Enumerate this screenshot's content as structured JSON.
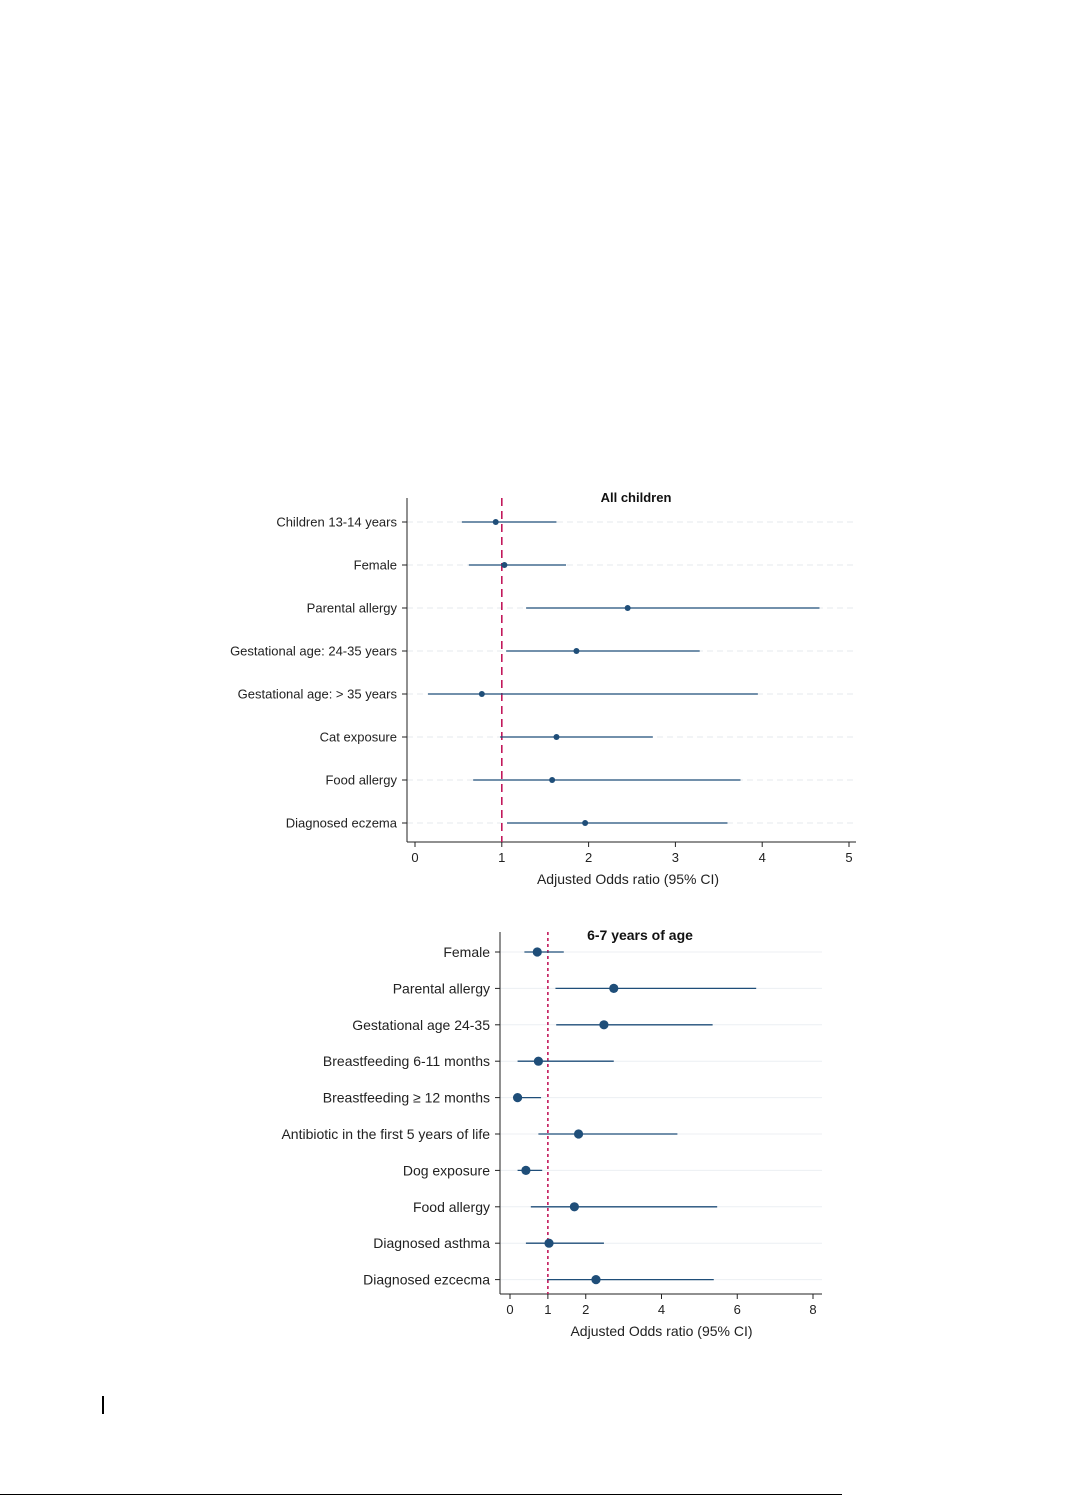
{
  "chart_data": [
    {
      "type": "forest",
      "title": "All children",
      "xlabel": "Adjusted Odds ratio (95% CI)",
      "xlim": [
        0,
        5
      ],
      "xticks": [
        0,
        1,
        2,
        3,
        4,
        5
      ],
      "reference_line": 1,
      "reference_style": "dashed",
      "grid": "horizontal dashed",
      "categories": [
        "Children 13-14 years",
        "Female",
        "Parental allergy",
        "Gestational age: 24-35 years",
        "Gestational age: > 35 years",
        "Cat exposure",
        "Food allergy",
        "Diagnosed eczema"
      ],
      "estimates": [
        0.93,
        1.03,
        2.45,
        1.86,
        0.77,
        1.63,
        1.58,
        1.96
      ],
      "ci_lower": [
        0.54,
        0.62,
        1.28,
        1.05,
        0.15,
        0.98,
        0.67,
        1.06
      ],
      "ci_upper": [
        1.63,
        1.74,
        4.66,
        3.28,
        3.95,
        2.74,
        3.75,
        3.6
      ],
      "colors": {
        "marker": "#1f4e79",
        "ci": "#1f4e79",
        "reference": "#c2185b",
        "grid": "#e6e9ee",
        "axis": "#222222"
      }
    },
    {
      "type": "forest",
      "title": "6-7 years of age",
      "xlabel": "Adjusted Odds ratio (95% CI)",
      "xlim": [
        0,
        8
      ],
      "xticks": [
        0,
        1,
        2,
        4,
        6,
        8
      ],
      "reference_line": 1,
      "reference_style": "dotted",
      "grid": "horizontal solid",
      "categories": [
        "Female",
        "Parental allergy",
        "Gestational age 24-35",
        "Breastfeeding 6-11 months",
        "Breastfeeding ≥ 12 months",
        "Antibiotic in the first 5 years of life",
        "Dog exposure",
        "Food allergy",
        "Diagnosed asthma",
        "Diagnosed ezcecma"
      ],
      "estimates": [
        0.72,
        2.74,
        2.48,
        0.75,
        0.2,
        1.81,
        0.42,
        1.7,
        1.03,
        2.27
      ],
      "ci_lower": [
        0.38,
        1.2,
        1.22,
        0.2,
        0.08,
        0.75,
        0.2,
        0.55,
        0.42,
        0.98
      ],
      "ci_upper": [
        1.42,
        6.5,
        5.35,
        2.74,
        0.82,
        4.42,
        0.85,
        5.47,
        2.48,
        5.38
      ],
      "colors": {
        "marker": "#1f4e79",
        "ci": "#1f4e79",
        "reference": "#c2185b",
        "grid": "#eceff3",
        "axis": "#222222"
      }
    }
  ]
}
